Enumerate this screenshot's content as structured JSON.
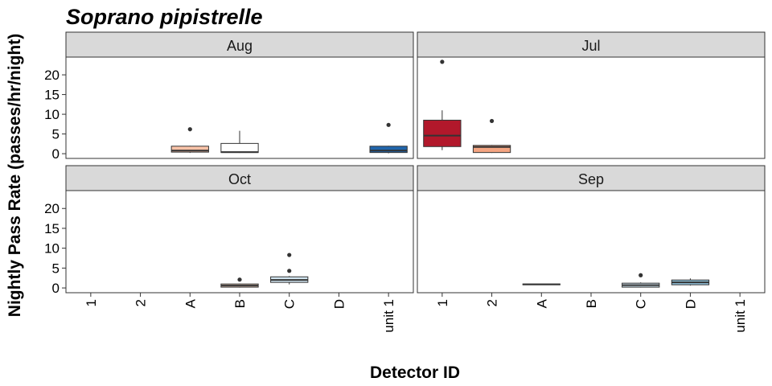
{
  "chart_data": {
    "type": "boxplot",
    "title": "Soprano pipistrelle",
    "xlabel": "Detector ID",
    "ylabel": "Nightly Pass Rate (passes/hr/night)",
    "categories": [
      "1",
      "2",
      "A",
      "B",
      "C",
      "D",
      "unit 1"
    ],
    "yticks": [
      0,
      5,
      10,
      15,
      20
    ],
    "ylim": [
      -1.2,
      24.5
    ],
    "grid": false,
    "legend": "none",
    "panels": [
      {
        "name": "Aug",
        "boxes": [
          {
            "category": "A",
            "q1": 0.4,
            "median": 0.8,
            "q3": 1.9,
            "whisker_low": 0.2,
            "whisker_high": 2.0,
            "outliers": [
              6.2
            ],
            "fill": "#fbc3a8"
          },
          {
            "category": "B",
            "q1": 0.3,
            "median": 0.4,
            "q3": 2.6,
            "whisker_low": 0.2,
            "whisker_high": 5.8,
            "outliers": [],
            "fill": "#ffffff"
          },
          {
            "category": "unit 1",
            "q1": 0.3,
            "median": 0.8,
            "q3": 1.9,
            "whisker_low": 0.1,
            "whisker_high": 2.0,
            "outliers": [
              7.3
            ],
            "fill": "#2166ac"
          }
        ]
      },
      {
        "name": "Jul",
        "boxes": [
          {
            "category": "1",
            "q1": 1.8,
            "median": 4.6,
            "q3": 8.5,
            "whisker_low": 0.9,
            "whisker_high": 11.0,
            "outliers": [
              23.3
            ],
            "fill": "#b2182b"
          },
          {
            "category": "2",
            "q1": 0.3,
            "median": 1.7,
            "q3": 2.1,
            "whisker_low": 0.2,
            "whisker_high": 2.2,
            "outliers": [
              8.3
            ],
            "fill": "#f4a582"
          }
        ]
      },
      {
        "name": "Oct",
        "boxes": [
          {
            "category": "B",
            "q1": 0.2,
            "median": 0.6,
            "q3": 1.0,
            "whisker_low": 0.1,
            "whisker_high": 1.1,
            "outliers": [
              2.1
            ],
            "fill": "#fddbc7"
          },
          {
            "category": "C",
            "q1": 1.4,
            "median": 2.0,
            "q3": 2.8,
            "whisker_low": 0.9,
            "whisker_high": 3.0,
            "outliers": [
              4.3,
              8.3
            ],
            "fill": "#d1e5f0"
          }
        ]
      },
      {
        "name": "Sep",
        "boxes": [
          {
            "category": "A",
            "q1": 0.8,
            "median": 0.9,
            "q3": 1.0,
            "whisker_low": 0.8,
            "whisker_high": 1.0,
            "outliers": [],
            "fill": "#f7f7f7"
          },
          {
            "category": "C",
            "q1": 0.2,
            "median": 0.7,
            "q3": 1.2,
            "whisker_low": 0.1,
            "whisker_high": 1.4,
            "outliers": [
              3.2
            ],
            "fill": "#d1e5f0"
          },
          {
            "category": "D",
            "q1": 0.8,
            "median": 1.4,
            "q3": 2.0,
            "whisker_low": 0.6,
            "whisker_high": 2.4,
            "outliers": [],
            "fill": "#92c5de"
          }
        ]
      }
    ]
  }
}
